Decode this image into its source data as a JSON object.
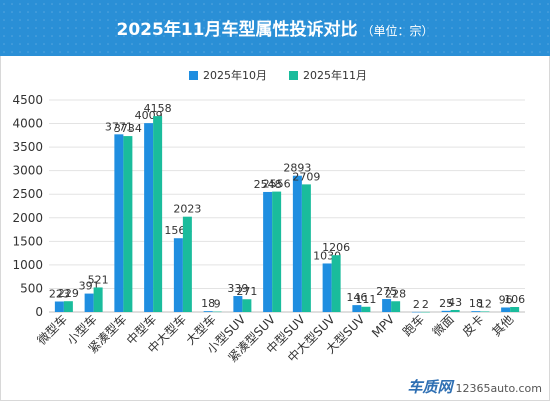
{
  "header": {
    "title": "2025年11月车型属性投诉对比",
    "unit": "（单位：宗）"
  },
  "watermark": {
    "logo": "车质网",
    "site": "12365auto.com"
  },
  "colors": {
    "header_bg": "#2a8fd6",
    "series_oct": "#1f8ee0",
    "series_nov": "#1abc9c",
    "grid": "#e3e3e3",
    "axis": "#bfbfbf",
    "text": "#333333"
  },
  "chart_data": {
    "type": "bar",
    "title": "2025年11月车型属性投诉对比",
    "categories": [
      "微型车",
      "小型车",
      "紧凑型车",
      "中型车",
      "中大型车",
      "大型车",
      "小型SUV",
      "紧凑型SUV",
      "中型SUV",
      "中大型SUV",
      "大型SUV",
      "MPV",
      "跑车",
      "微面",
      "皮卡",
      "其他"
    ],
    "series": [
      {
        "name": "2025年10月",
        "values": [
          223,
          391,
          3771,
          4009,
          1566,
          18,
          339,
          2548,
          2893,
          1030,
          146,
          275,
          2,
          25,
          18,
          96
        ]
      },
      {
        "name": "2025年11月",
        "values": [
          229,
          521,
          3734,
          4158,
          2023,
          9,
          271,
          2556,
          2709,
          1206,
          111,
          228,
          2,
          43,
          12,
          106
        ]
      }
    ],
    "ylim": [
      0,
      4500
    ],
    "yticks": [
      0,
      500,
      1000,
      1500,
      2000,
      2500,
      3000,
      3500,
      4000,
      4500
    ],
    "grid": true,
    "legend_position": "top"
  }
}
